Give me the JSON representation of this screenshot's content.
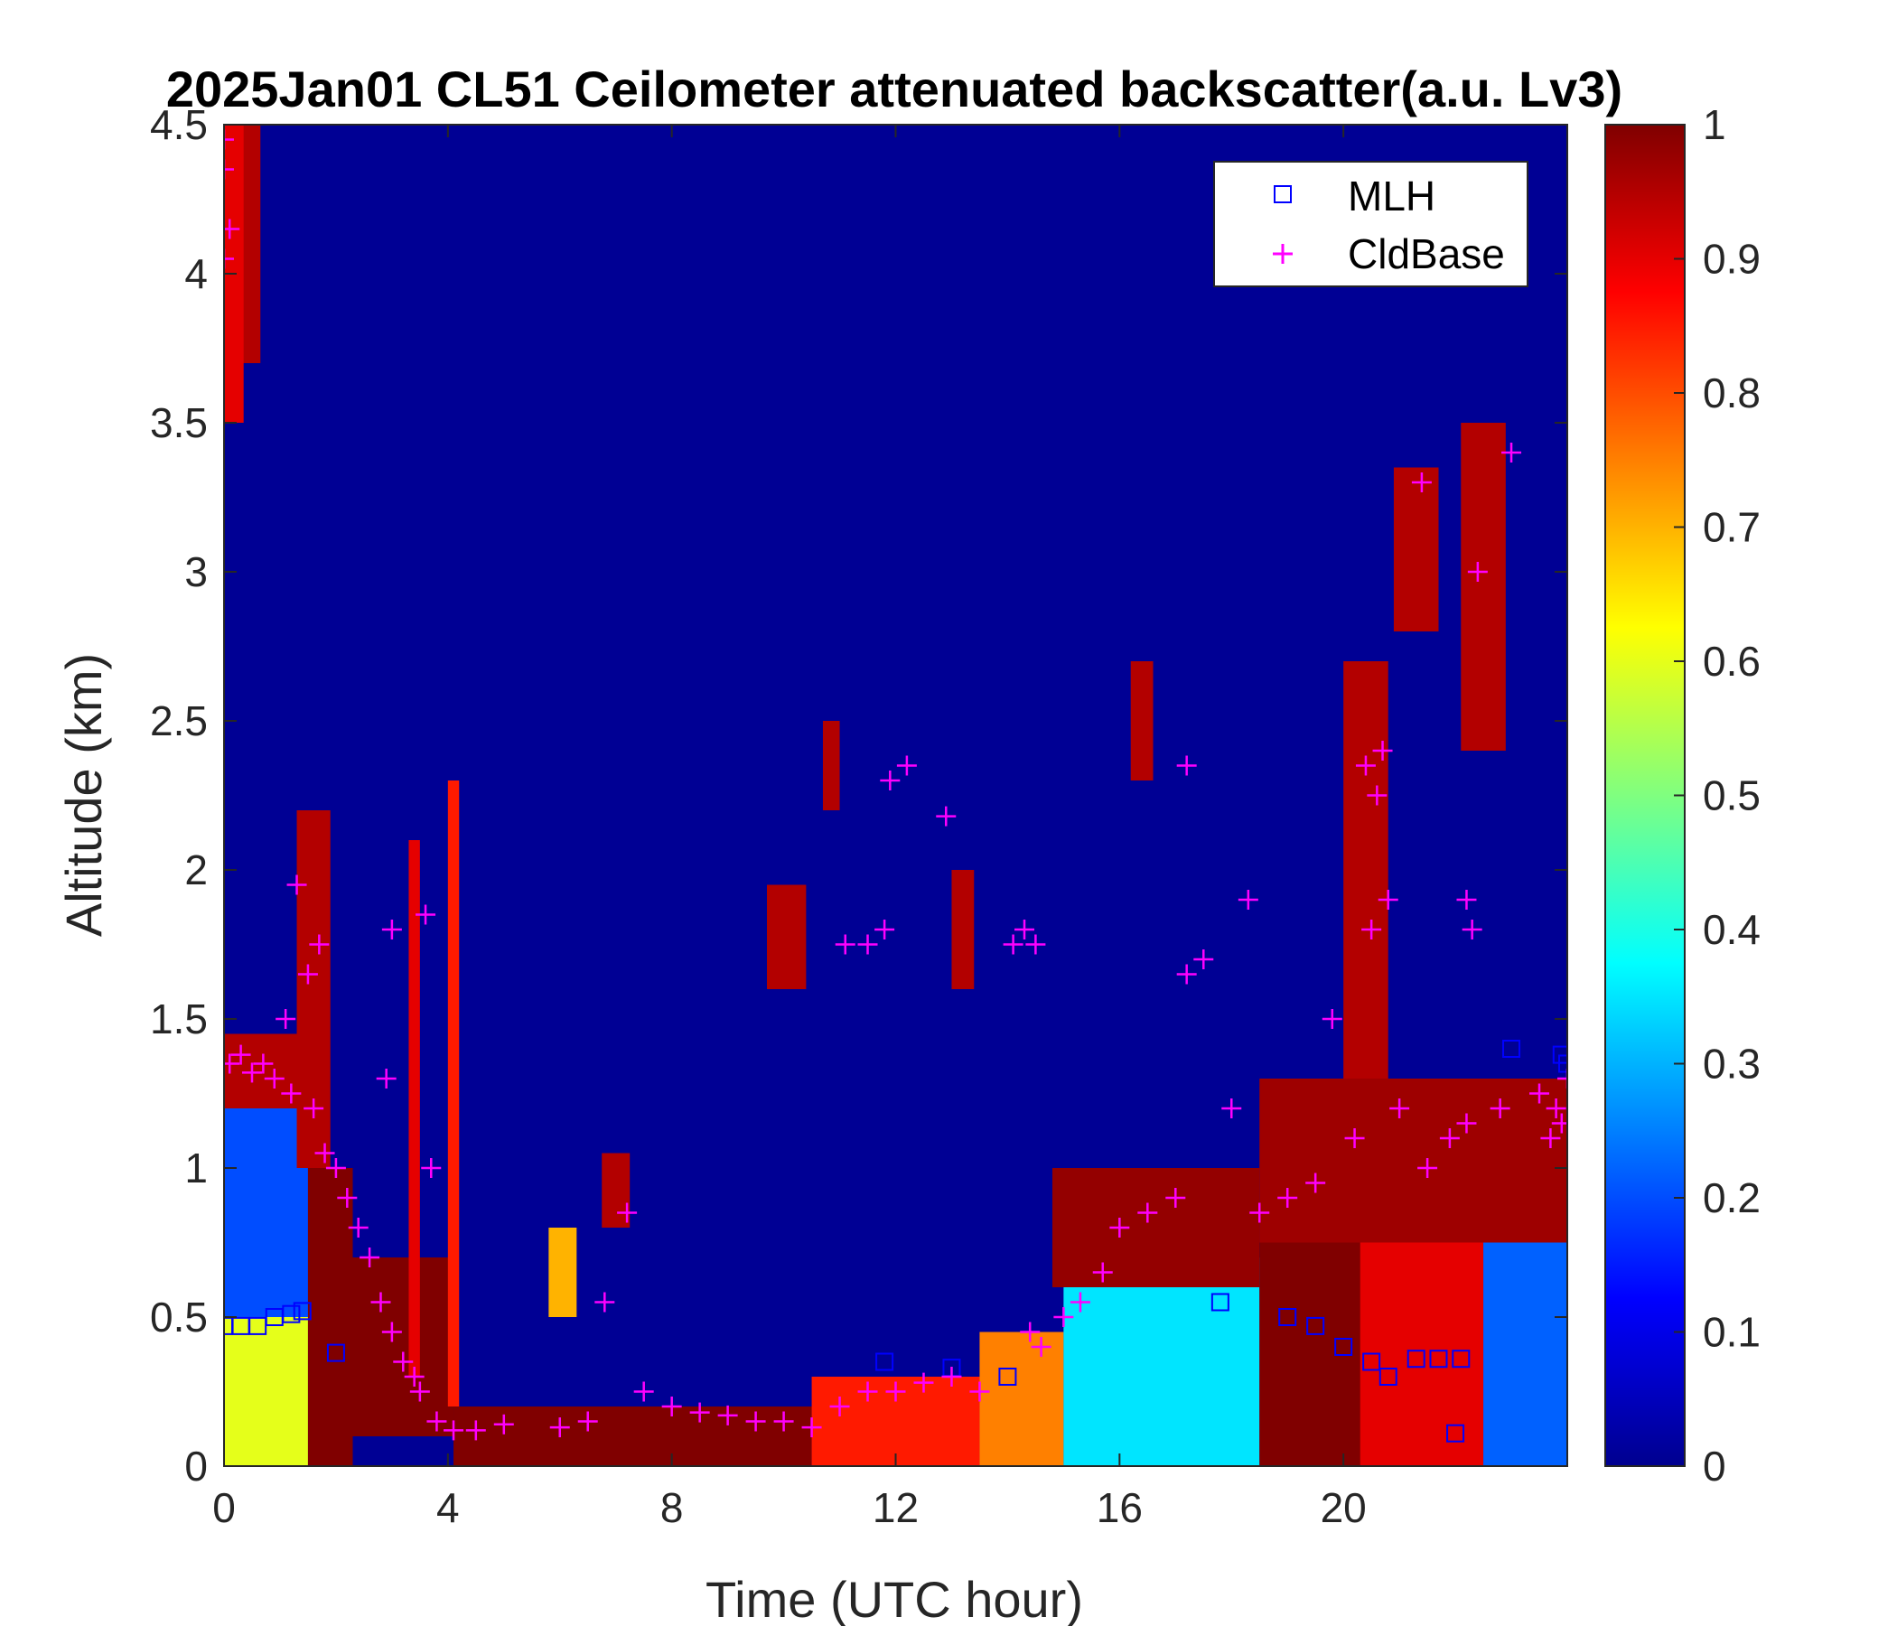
{
  "chart_data": {
    "type": "heatmap",
    "title": "2025Jan01 CL51 Ceilometer attenuated backscatter(a.u. Lv3)",
    "xlabel": "Time (UTC hour)",
    "ylabel": "Altitude (km)",
    "xlim": [
      0,
      24
    ],
    "ylim": [
      0,
      4.5
    ],
    "xticks": [
      "0",
      "4",
      "8",
      "12",
      "16",
      "20"
    ],
    "yticks": [
      "0",
      "0.5",
      "1",
      "1.5",
      "2",
      "2.5",
      "3",
      "3.5",
      "4",
      "4.5"
    ],
    "colorbar": {
      "colormap": "jet",
      "range": [
        0,
        1
      ],
      "ticks": [
        "0",
        "0.1",
        "0.2",
        "0.3",
        "0.4",
        "0.5",
        "0.6",
        "0.7",
        "0.8",
        "0.9",
        "1"
      ]
    },
    "legend": {
      "position": "top-right",
      "entries": [
        {
          "name": "MLH",
          "marker": "square",
          "color": "#0000ff"
        },
        {
          "name": "CldBase",
          "marker": "plus",
          "color": "#ff00ff"
        }
      ]
    },
    "background_value": 0.02,
    "features": [
      {
        "x0": 0.0,
        "x1": 1.5,
        "y0": 0.0,
        "y1": 0.5,
        "value": 0.6
      },
      {
        "x0": 0.0,
        "x1": 1.5,
        "y0": 0.5,
        "y1": 1.25,
        "value": 0.2
      },
      {
        "x0": 0.0,
        "x1": 1.6,
        "y0": 1.2,
        "y1": 1.45,
        "value": 0.95
      },
      {
        "x0": 0.3,
        "x1": 0.65,
        "y0": 3.7,
        "y1": 4.5,
        "value": 0.95
      },
      {
        "x0": 0.0,
        "x1": 0.35,
        "y0": 3.5,
        "y1": 4.5,
        "value": 0.9
      },
      {
        "x0": 1.5,
        "x1": 2.3,
        "y0": 0.0,
        "y1": 1.0,
        "value": 1.0
      },
      {
        "x0": 2.3,
        "x1": 4.1,
        "y0": 0.1,
        "y1": 0.7,
        "value": 1.0
      },
      {
        "x0": 1.3,
        "x1": 1.9,
        "y0": 1.0,
        "y1": 2.2,
        "value": 0.95
      },
      {
        "x0": 3.3,
        "x1": 3.5,
        "y0": 0.3,
        "y1": 2.1,
        "value": 0.9
      },
      {
        "x0": 4.0,
        "x1": 4.2,
        "y0": 0.2,
        "y1": 2.3,
        "value": 0.85
      },
      {
        "x0": 4.1,
        "x1": 10.5,
        "y0": 0.0,
        "y1": 0.2,
        "value": 1.0
      },
      {
        "x0": 6.75,
        "x1": 7.25,
        "y0": 0.8,
        "y1": 1.05,
        "value": 0.95
      },
      {
        "x0": 5.8,
        "x1": 6.3,
        "y0": 0.5,
        "y1": 0.8,
        "value": 0.7
      },
      {
        "x0": 9.7,
        "x1": 10.4,
        "y0": 1.6,
        "y1": 1.95,
        "value": 0.95
      },
      {
        "x0": 10.7,
        "x1": 11.0,
        "y0": 2.2,
        "y1": 2.5,
        "value": 0.95
      },
      {
        "x0": 13.0,
        "x1": 13.4,
        "y0": 1.6,
        "y1": 2.0,
        "value": 0.95
      },
      {
        "x0": 10.5,
        "x1": 13.5,
        "y0": 0.0,
        "y1": 0.3,
        "value": 0.85
      },
      {
        "x0": 13.5,
        "x1": 15.0,
        "y0": 0.0,
        "y1": 0.45,
        "value": 0.75
      },
      {
        "x0": 15.0,
        "x1": 18.5,
        "y0": 0.0,
        "y1": 0.7,
        "value": 0.35
      },
      {
        "x0": 14.8,
        "x1": 18.5,
        "y0": 0.6,
        "y1": 1.0,
        "value": 0.98
      },
      {
        "x0": 16.2,
        "x1": 16.6,
        "y0": 2.3,
        "y1": 2.7,
        "value": 0.95
      },
      {
        "x0": 18.5,
        "x1": 20.5,
        "y0": 0.0,
        "y1": 0.8,
        "value": 1.0
      },
      {
        "x0": 20.3,
        "x1": 22.5,
        "y0": 0.0,
        "y1": 1.1,
        "value": 0.9
      },
      {
        "x0": 20.0,
        "x1": 20.8,
        "y0": 1.0,
        "y1": 2.7,
        "value": 0.95
      },
      {
        "x0": 20.9,
        "x1": 21.7,
        "y0": 2.8,
        "y1": 3.35,
        "value": 0.95
      },
      {
        "x0": 22.1,
        "x1": 22.9,
        "y0": 2.4,
        "y1": 3.5,
        "value": 0.95
      },
      {
        "x0": 22.5,
        "x1": 24.0,
        "y0": 0.0,
        "y1": 1.3,
        "value": 0.22
      },
      {
        "x0": 18.5,
        "x1": 24.0,
        "y0": 0.75,
        "y1": 1.3,
        "value": 0.97
      }
    ],
    "series": [
      {
        "name": "MLH",
        "points": [
          [
            0.0,
            0.47
          ],
          [
            0.3,
            0.47
          ],
          [
            0.6,
            0.47
          ],
          [
            0.9,
            0.5
          ],
          [
            1.2,
            0.51
          ],
          [
            1.4,
            0.52
          ],
          [
            2.0,
            0.38
          ],
          [
            11.8,
            0.35
          ],
          [
            13.0,
            0.33
          ],
          [
            14.0,
            0.3
          ],
          [
            17.8,
            0.55
          ],
          [
            19.0,
            0.5
          ],
          [
            19.5,
            0.47
          ],
          [
            20.0,
            0.4
          ],
          [
            20.5,
            0.35
          ],
          [
            20.8,
            0.3
          ],
          [
            21.3,
            0.36
          ],
          [
            21.7,
            0.36
          ],
          [
            22.1,
            0.36
          ],
          [
            22.0,
            0.11
          ],
          [
            23.0,
            1.4
          ],
          [
            23.9,
            1.38
          ],
          [
            24.0,
            1.35
          ]
        ]
      },
      {
        "name": "CldBase",
        "points": [
          [
            0.0,
            4.45
          ],
          [
            0.0,
            4.35
          ],
          [
            0.1,
            4.15
          ],
          [
            0.0,
            4.05
          ],
          [
            0.1,
            1.35
          ],
          [
            0.3,
            1.38
          ],
          [
            0.5,
            1.32
          ],
          [
            0.7,
            1.35
          ],
          [
            0.9,
            1.3
          ],
          [
            1.1,
            1.5
          ],
          [
            1.2,
            1.25
          ],
          [
            1.3,
            1.95
          ],
          [
            1.5,
            1.65
          ],
          [
            1.6,
            1.2
          ],
          [
            1.7,
            1.75
          ],
          [
            1.8,
            1.05
          ],
          [
            2.0,
            1.0
          ],
          [
            2.2,
            0.9
          ],
          [
            2.4,
            0.8
          ],
          [
            2.6,
            0.7
          ],
          [
            2.8,
            0.55
          ],
          [
            3.0,
            0.45
          ],
          [
            3.2,
            0.35
          ],
          [
            3.4,
            0.3
          ],
          [
            3.0,
            1.8
          ],
          [
            3.6,
            1.85
          ],
          [
            3.7,
            1.0
          ],
          [
            2.9,
            1.3
          ],
          [
            3.5,
            0.25
          ],
          [
            3.8,
            0.15
          ],
          [
            4.1,
            0.12
          ],
          [
            4.5,
            0.12
          ],
          [
            5.0,
            0.14
          ],
          [
            6.0,
            0.13
          ],
          [
            6.5,
            0.15
          ],
          [
            6.8,
            0.55
          ],
          [
            7.2,
            0.85
          ],
          [
            7.5,
            0.25
          ],
          [
            8.0,
            0.2
          ],
          [
            8.5,
            0.18
          ],
          [
            9.0,
            0.17
          ],
          [
            9.5,
            0.15
          ],
          [
            10.0,
            0.15
          ],
          [
            10.5,
            0.13
          ],
          [
            11.0,
            0.2
          ],
          [
            11.5,
            0.25
          ],
          [
            12.0,
            0.25
          ],
          [
            12.5,
            0.28
          ],
          [
            13.0,
            0.3
          ],
          [
            13.5,
            0.25
          ],
          [
            11.1,
            1.75
          ],
          [
            11.5,
            1.75
          ],
          [
            11.8,
            1.8
          ],
          [
            11.9,
            2.3
          ],
          [
            12.2,
            2.35
          ],
          [
            12.9,
            2.18
          ],
          [
            14.1,
            1.75
          ],
          [
            14.3,
            1.8
          ],
          [
            14.5,
            1.75
          ],
          [
            14.4,
            0.45
          ],
          [
            14.6,
            0.4
          ],
          [
            15.0,
            0.5
          ],
          [
            15.3,
            0.55
          ],
          [
            15.7,
            0.65
          ],
          [
            16.0,
            0.8
          ],
          [
            16.5,
            0.85
          ],
          [
            17.0,
            0.9
          ],
          [
            17.2,
            2.35
          ],
          [
            17.5,
            1.7
          ],
          [
            17.2,
            1.65
          ],
          [
            18.0,
            1.2
          ],
          [
            18.3,
            1.9
          ],
          [
            18.5,
            0.85
          ],
          [
            19.0,
            0.9
          ],
          [
            19.5,
            0.95
          ],
          [
            19.8,
            1.5
          ],
          [
            20.2,
            1.1
          ],
          [
            20.4,
            2.35
          ],
          [
            20.6,
            2.25
          ],
          [
            20.7,
            2.4
          ],
          [
            20.5,
            1.8
          ],
          [
            20.8,
            1.9
          ],
          [
            21.0,
            1.2
          ],
          [
            21.4,
            3.3
          ],
          [
            21.5,
            1.0
          ],
          [
            21.9,
            1.1
          ],
          [
            22.2,
            1.15
          ],
          [
            22.2,
            1.9
          ],
          [
            22.3,
            1.8
          ],
          [
            22.4,
            3.0
          ],
          [
            22.8,
            1.2
          ],
          [
            23.0,
            3.4
          ],
          [
            23.5,
            1.25
          ],
          [
            23.8,
            1.2
          ],
          [
            24.0,
            1.3
          ],
          [
            23.7,
            1.1
          ],
          [
            23.9,
            1.15
          ]
        ]
      }
    ]
  }
}
